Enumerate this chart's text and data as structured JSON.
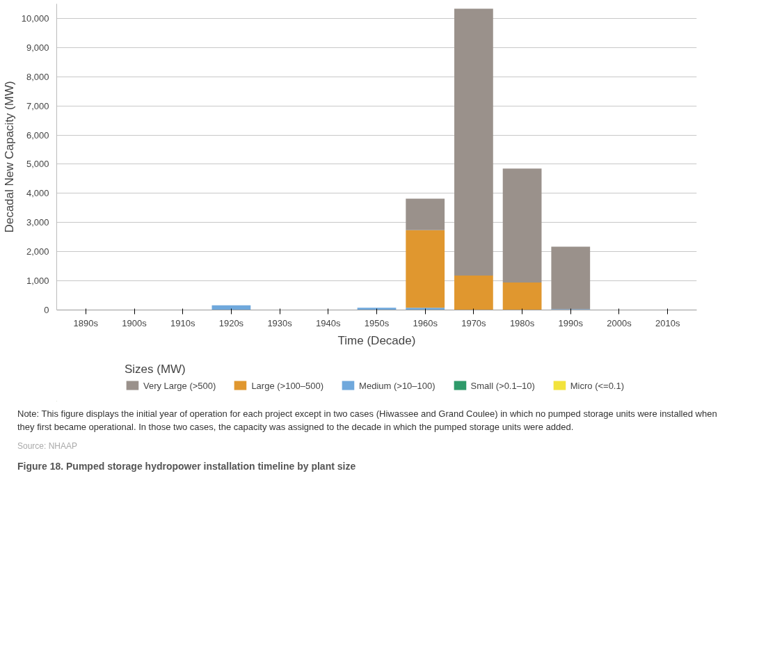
{
  "chart_data": {
    "type": "bar",
    "stacked": true,
    "categories": [
      "1890s",
      "1900s",
      "1910s",
      "1920s",
      "1930s",
      "1940s",
      "1950s",
      "1960s",
      "1970s",
      "1980s",
      "1990s",
      "2000s",
      "2010s"
    ],
    "series": [
      {
        "name": "Micro (<=0.1)",
        "color": "#f2e33c",
        "values": [
          0,
          0,
          0,
          0,
          0,
          0,
          0,
          0,
          0,
          0,
          0,
          0,
          0
        ]
      },
      {
        "name": "Small (>0.1–10)",
        "color": "#2e9a6a",
        "values": [
          0,
          0,
          0,
          0,
          0,
          0,
          0,
          0,
          0,
          0,
          0,
          0,
          0
        ]
      },
      {
        "name": "Medium (>10–100)",
        "color": "#6fa8dc",
        "values": [
          0,
          0,
          0,
          160,
          0,
          0,
          80,
          80,
          null,
          null,
          30,
          0,
          null
        ]
      },
      {
        "name": "Large (>100–500)",
        "color": "#e0972f",
        "values": [
          0,
          0,
          0,
          0,
          0,
          0,
          0,
          2660,
          1180,
          940,
          0,
          0,
          0
        ]
      },
      {
        "name": "Very Large (>500)",
        "color": "#9a918b",
        "values": [
          0,
          0,
          0,
          0,
          0,
          0,
          0,
          1080,
          9150,
          3910,
          2140,
          0,
          0
        ]
      }
    ],
    "xlabel": "Time (Decade)",
    "ylabel": "Decadal New Capacity (MW)",
    "legend_title": "Sizes (MW)",
    "ylim": [
      0,
      10500
    ],
    "yticks": [
      0,
      {
        "value": 1000,
        "label": "1,000"
      },
      {
        "value": 2000,
        "label": "2,000"
      },
      {
        "value": 3000,
        "label": "3,000"
      },
      {
        "value": 4000,
        "label": "4,000"
      },
      {
        "value": 5000,
        "label": "5,000"
      },
      {
        "value": 6000,
        "label": "6,000"
      },
      {
        "value": 7000,
        "label": "7,000"
      },
      {
        "value": 8000,
        "label": "8,000"
      },
      {
        "value": 9000,
        "label": "9,000"
      },
      {
        "value": 10000,
        "label": "10,000"
      }
    ],
    "grid": "y",
    "legend": "bottom",
    "annotations": [
      "Note: This figure displays the initial year of operation for each project except in two cases (Hiwassee and Grand Coulee) in which no pumped storage units were installed when they first became operational. In those two cases, the capacity was assigned to the decade in which the pumped storage units were added.",
      "Source: NHAAP",
      "Figure 18. Pumped storage hydropower installation timeline by plant size"
    ]
  }
}
